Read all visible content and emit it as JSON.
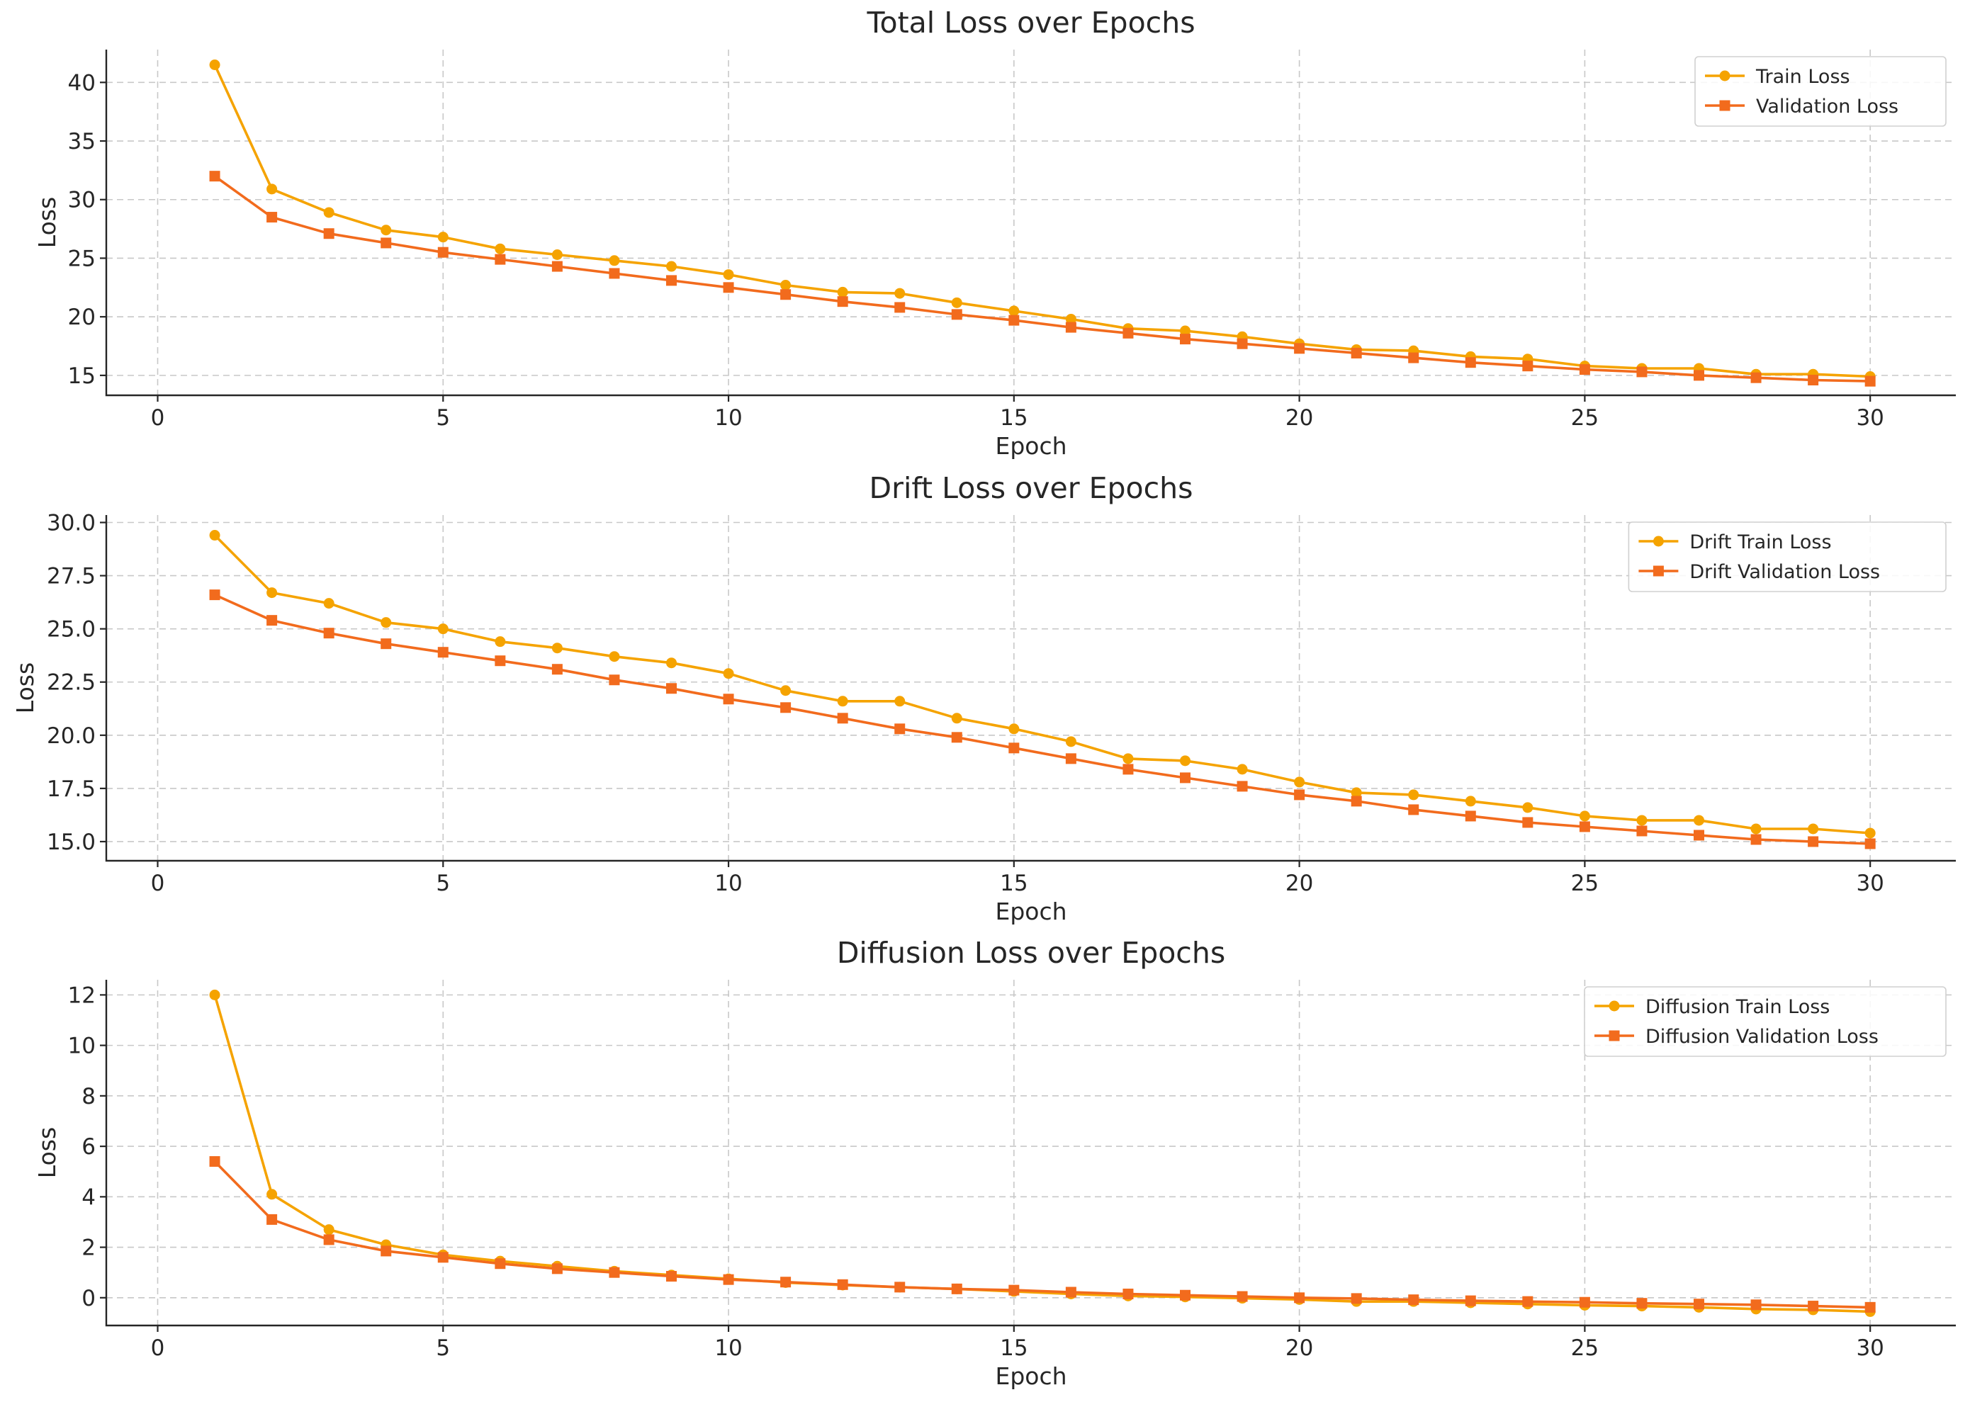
{
  "chart_data": [
    {
      "type": "line",
      "title": "Total Loss over Epochs",
      "xlabel": "Epoch",
      "ylabel": "Loss",
      "xlim": [
        -0.9,
        31.5
      ],
      "ylim": [
        13.3,
        42.8
      ],
      "xticks": [
        0,
        5,
        10,
        15,
        20,
        25,
        30
      ],
      "xtick_labels": [
        "0",
        "5",
        "10",
        "15",
        "20",
        "25",
        "30"
      ],
      "yticks": [
        15,
        20,
        25,
        30,
        35,
        40
      ],
      "ytick_labels": [
        "15",
        "20",
        "25",
        "30",
        "35",
        "40"
      ],
      "grid": true,
      "legend_position": "top-right",
      "x": [
        1,
        2,
        3,
        4,
        5,
        6,
        7,
        8,
        9,
        10,
        11,
        12,
        13,
        14,
        15,
        16,
        17,
        18,
        19,
        20,
        21,
        22,
        23,
        24,
        25,
        26,
        27,
        28,
        29,
        30
      ],
      "series": [
        {
          "name": "Train Loss",
          "color": "#f5a300",
          "marker": "circle",
          "values": [
            41.5,
            30.9,
            28.9,
            27.4,
            26.8,
            25.8,
            25.3,
            24.8,
            24.3,
            23.6,
            22.7,
            22.1,
            22.0,
            21.2,
            20.5,
            19.8,
            19.0,
            18.8,
            18.3,
            17.7,
            17.2,
            17.1,
            16.6,
            16.4,
            15.8,
            15.6,
            15.6,
            15.1,
            15.1,
            14.9
          ]
        },
        {
          "name": "Validation Loss",
          "color": "#f26b1d",
          "marker": "square",
          "values": [
            32.0,
            28.5,
            27.1,
            26.3,
            25.5,
            24.9,
            24.3,
            23.7,
            23.1,
            22.5,
            21.9,
            21.3,
            20.8,
            20.2,
            19.7,
            19.1,
            18.6,
            18.1,
            17.7,
            17.3,
            16.9,
            16.5,
            16.1,
            15.8,
            15.5,
            15.3,
            15.0,
            14.8,
            14.6,
            14.5
          ]
        }
      ]
    },
    {
      "type": "line",
      "title": "Drift Loss over Epochs",
      "xlabel": "Epoch",
      "ylabel": "Loss",
      "xlim": [
        -0.9,
        31.5
      ],
      "ylim": [
        14.1,
        30.35
      ],
      "xticks": [
        0,
        5,
        10,
        15,
        20,
        25,
        30
      ],
      "xtick_labels": [
        "0",
        "5",
        "10",
        "15",
        "20",
        "25",
        "30"
      ],
      "yticks": [
        15.0,
        17.5,
        20.0,
        22.5,
        25.0,
        27.5,
        30.0
      ],
      "ytick_labels": [
        "15.0",
        "17.5",
        "20.0",
        "22.5",
        "25.0",
        "27.5",
        "30.0"
      ],
      "grid": true,
      "legend_position": "top-right",
      "x": [
        1,
        2,
        3,
        4,
        5,
        6,
        7,
        8,
        9,
        10,
        11,
        12,
        13,
        14,
        15,
        16,
        17,
        18,
        19,
        20,
        21,
        22,
        23,
        24,
        25,
        26,
        27,
        28,
        29,
        30
      ],
      "series": [
        {
          "name": "Drift Train Loss",
          "color": "#f5a300",
          "marker": "circle",
          "values": [
            29.4,
            26.7,
            26.2,
            25.3,
            25.0,
            24.4,
            24.1,
            23.7,
            23.4,
            22.9,
            22.1,
            21.6,
            21.6,
            20.8,
            20.3,
            19.7,
            18.9,
            18.8,
            18.4,
            17.8,
            17.3,
            17.2,
            16.9,
            16.6,
            16.2,
            16.0,
            16.0,
            15.6,
            15.6,
            15.4
          ]
        },
        {
          "name": "Drift Validation Loss",
          "color": "#f26b1d",
          "marker": "square",
          "values": [
            26.6,
            25.4,
            24.8,
            24.3,
            23.9,
            23.5,
            23.1,
            22.6,
            22.2,
            21.7,
            21.3,
            20.8,
            20.3,
            19.9,
            19.4,
            18.9,
            18.4,
            18.0,
            17.6,
            17.2,
            16.9,
            16.5,
            16.2,
            15.9,
            15.7,
            15.5,
            15.3,
            15.1,
            15.0,
            14.9
          ]
        }
      ]
    },
    {
      "type": "line",
      "title": "Diffusion Loss over Epochs",
      "xlabel": "Epoch",
      "ylabel": "Loss",
      "xlim": [
        -0.9,
        31.5
      ],
      "ylim": [
        -1.1,
        12.6
      ],
      "xticks": [
        0,
        5,
        10,
        15,
        20,
        25,
        30
      ],
      "xtick_labels": [
        "0",
        "5",
        "10",
        "15",
        "20",
        "25",
        "30"
      ],
      "yticks": [
        0,
        2,
        4,
        6,
        8,
        10,
        12
      ],
      "ytick_labels": [
        "0",
        "2",
        "4",
        "6",
        "8",
        "10",
        "12"
      ],
      "grid": true,
      "legend_position": "top-right",
      "x": [
        1,
        2,
        3,
        4,
        5,
        6,
        7,
        8,
        9,
        10,
        11,
        12,
        13,
        14,
        15,
        16,
        17,
        18,
        19,
        20,
        21,
        22,
        23,
        24,
        25,
        26,
        27,
        28,
        29,
        30
      ],
      "series": [
        {
          "name": "Diffusion Train Loss",
          "color": "#f5a300",
          "marker": "circle",
          "values": [
            12.0,
            4.1,
            2.7,
            2.1,
            1.7,
            1.45,
            1.25,
            1.05,
            0.9,
            0.75,
            0.6,
            0.5,
            0.42,
            0.35,
            0.25,
            0.15,
            0.07,
            0.03,
            -0.02,
            -0.07,
            -0.15,
            -0.15,
            -0.2,
            -0.25,
            -0.3,
            -0.33,
            -0.38,
            -0.45,
            -0.48,
            -0.55
          ]
        },
        {
          "name": "Diffusion Validation Loss",
          "color": "#f26b1d",
          "marker": "square",
          "values": [
            5.4,
            3.1,
            2.3,
            1.85,
            1.6,
            1.35,
            1.15,
            1.0,
            0.85,
            0.72,
            0.62,
            0.52,
            0.42,
            0.35,
            0.3,
            0.22,
            0.15,
            0.1,
            0.05,
            0.0,
            -0.03,
            -0.08,
            -0.12,
            -0.15,
            -0.18,
            -0.22,
            -0.25,
            -0.28,
            -0.33,
            -0.38
          ]
        }
      ]
    }
  ]
}
